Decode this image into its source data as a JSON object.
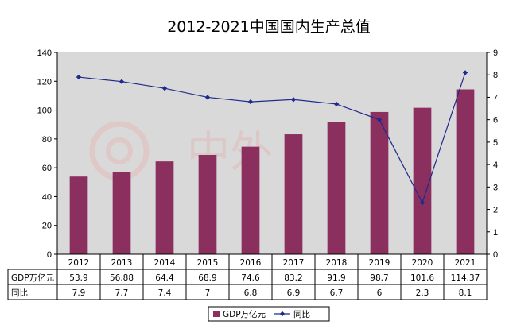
{
  "chart_data": {
    "type": "bar",
    "title": "2012-2021中国国内生产总值",
    "categories": [
      "2012",
      "2013",
      "2014",
      "2015",
      "2016",
      "2017",
      "2018",
      "2019",
      "2020",
      "2021"
    ],
    "ylim": [
      0,
      140
    ],
    "y_ticks": [
      0,
      20,
      40,
      60,
      80,
      100,
      120,
      140
    ],
    "y2lim": [
      0,
      9
    ],
    "y2_ticks": [
      0,
      1,
      2,
      3,
      4,
      5,
      6,
      7,
      8,
      9
    ],
    "grid": false,
    "legend_placement": "bottom",
    "series": [
      {
        "name": "GDP万亿元",
        "type": "bar",
        "axis": "left",
        "color": "#8B2F5E",
        "values": [
          53.9,
          56.88,
          64.4,
          68.9,
          74.6,
          83.2,
          91.9,
          98.7,
          101.6,
          114.37
        ],
        "labels": [
          "53.9",
          "56.88",
          "64.4",
          "68.9",
          "74.6",
          "83.2",
          "91.9",
          "98.7",
          "101.6",
          "114.37"
        ]
      },
      {
        "name": "同比",
        "type": "line",
        "axis": "right",
        "color": "#1F2A8C",
        "values": [
          7.9,
          7.7,
          7.4,
          7,
          6.8,
          6.9,
          6.7,
          6,
          2.3,
          8.1
        ],
        "labels": [
          "7.9",
          "7.7",
          "7.4",
          "7",
          "6.8",
          "6.9",
          "6.7",
          "6",
          "2.3",
          "8.1"
        ]
      }
    ],
    "table_row_headers": [
      "GDP万亿元",
      "同比"
    ]
  },
  "watermark_text": "中外",
  "colors": {
    "plot_background": "#D9D9D9",
    "bar_fill": "#8B2F5E",
    "line": "#1F2A8C",
    "table_border": "#000000"
  }
}
